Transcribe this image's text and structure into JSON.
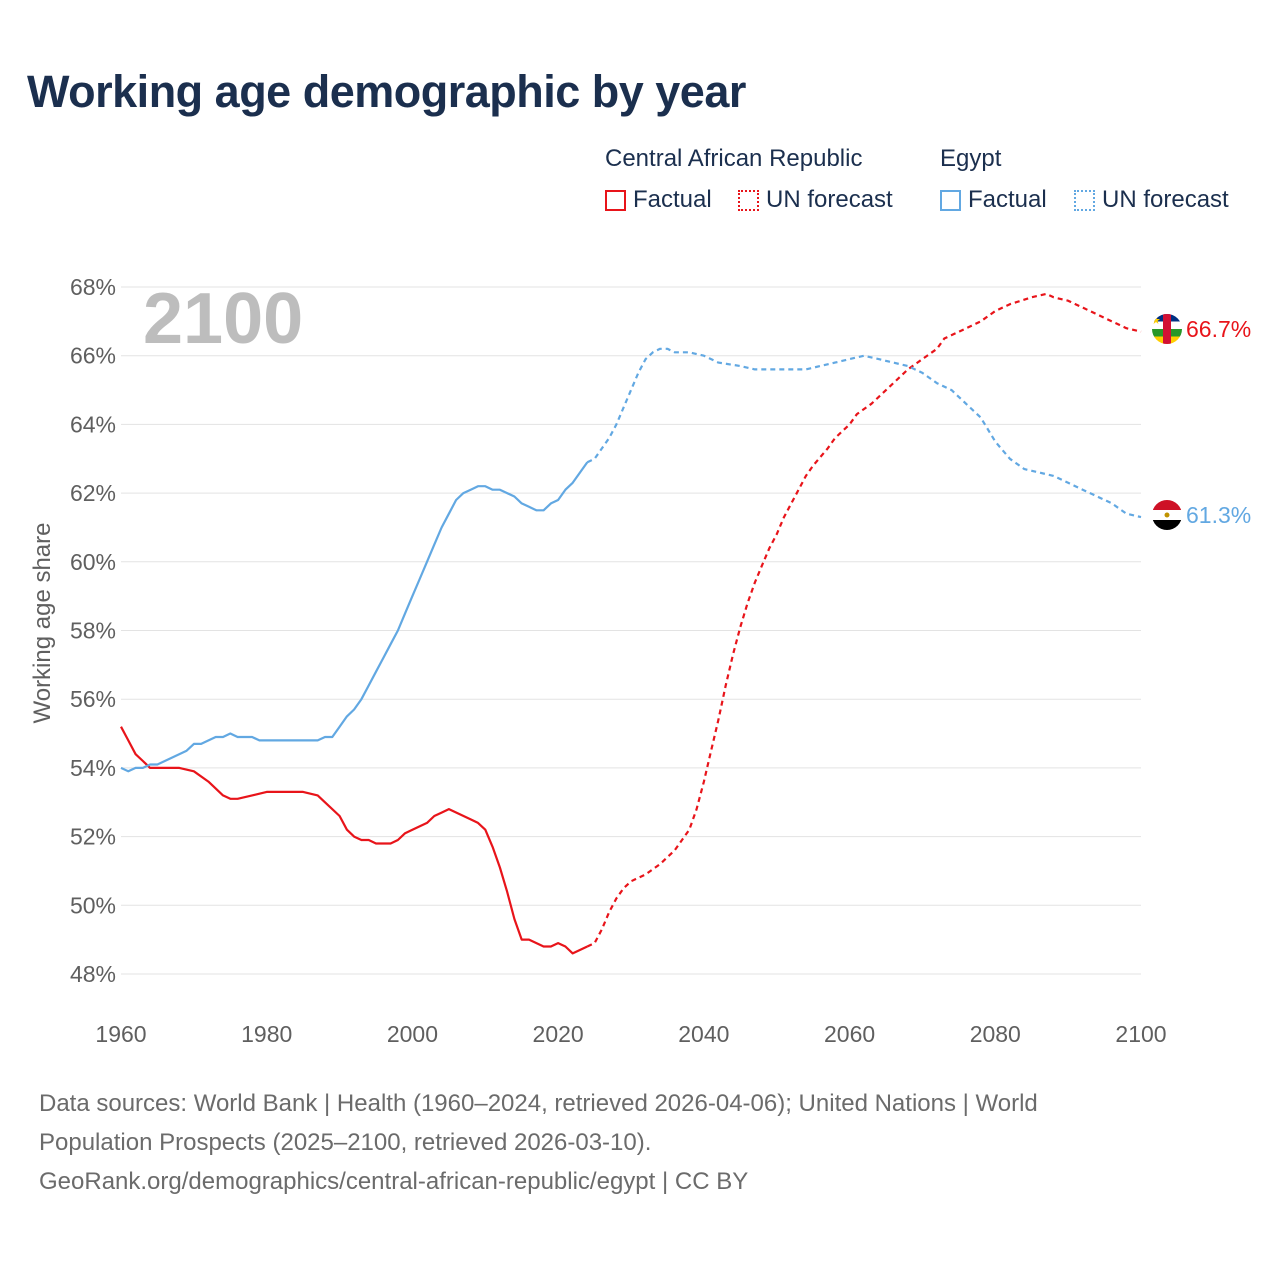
{
  "title": "Working age demographic by year",
  "legend": {
    "groups": [
      {
        "name": "Central African Republic",
        "factual": "Factual",
        "forecast": "UN forecast",
        "color": "#e8141a"
      },
      {
        "name": "Egypt",
        "factual": "Factual",
        "forecast": "UN forecast",
        "color": "#62a8e2"
      }
    ]
  },
  "year_watermark": "2100",
  "end_labels": {
    "caf": "66.7%",
    "egypt": "61.3%"
  },
  "footer": {
    "line1": "Data sources: World Bank | Health (1960–2024, retrieved 2026-04-06); United Nations | World",
    "line2": "Population Prospects (2025–2100, retrieved 2026-03-10).",
    "line3": "GeoRank.org/demographics/central-african-republic/egypt | CC BY"
  },
  "chart_data": {
    "type": "line",
    "title": "Working age demographic by year",
    "xlabel": "",
    "ylabel": "Working age share",
    "xlim": [
      1960,
      2100
    ],
    "ylim": [
      47.5,
      68
    ],
    "x_ticks": [
      1960,
      1980,
      2000,
      2020,
      2040,
      2060,
      2080,
      2100
    ],
    "x_tick_labels": [
      "1960",
      "1980",
      "2000",
      "2020",
      "2040",
      "2060",
      "2080",
      "2100"
    ],
    "y_ticks": [
      48,
      50,
      52,
      54,
      56,
      58,
      60,
      62,
      64,
      66,
      68
    ],
    "y_tick_labels": [
      "48%",
      "50%",
      "52%",
      "54%",
      "56%",
      "58%",
      "60%",
      "62%",
      "64%",
      "66%",
      "68%"
    ],
    "series": [
      {
        "name": "Central African Republic",
        "color": "#e8141a",
        "factual": [
          [
            1960,
            55.2
          ],
          [
            1961,
            54.8
          ],
          [
            1962,
            54.4
          ],
          [
            1963,
            54.2
          ],
          [
            1964,
            54.0
          ],
          [
            1965,
            54.0
          ],
          [
            1968,
            54.0
          ],
          [
            1970,
            53.9
          ],
          [
            1972,
            53.6
          ],
          [
            1974,
            53.2
          ],
          [
            1975,
            53.1
          ],
          [
            1976,
            53.1
          ],
          [
            1978,
            53.2
          ],
          [
            1980,
            53.3
          ],
          [
            1985,
            53.3
          ],
          [
            1987,
            53.2
          ],
          [
            1988,
            53.0
          ],
          [
            1990,
            52.6
          ],
          [
            1991,
            52.2
          ],
          [
            1992,
            52.0
          ],
          [
            1993,
            51.9
          ],
          [
            1994,
            51.9
          ],
          [
            1995,
            51.8
          ],
          [
            1997,
            51.8
          ],
          [
            1998,
            51.9
          ],
          [
            1999,
            52.1
          ],
          [
            2000,
            52.2
          ],
          [
            2002,
            52.4
          ],
          [
            2003,
            52.6
          ],
          [
            2004,
            52.7
          ],
          [
            2005,
            52.8
          ],
          [
            2008,
            52.5
          ],
          [
            2009,
            52.4
          ],
          [
            2010,
            52.2
          ],
          [
            2011,
            51.7
          ],
          [
            2012,
            51.1
          ],
          [
            2013,
            50.4
          ],
          [
            2014,
            49.6
          ],
          [
            2015,
            49.0
          ],
          [
            2016,
            49.0
          ],
          [
            2018,
            48.8
          ],
          [
            2019,
            48.8
          ],
          [
            2020,
            48.9
          ],
          [
            2021,
            48.8
          ],
          [
            2022,
            48.6
          ],
          [
            2024,
            48.8
          ]
        ],
        "forecast": [
          [
            2024,
            48.8
          ],
          [
            2025,
            48.9
          ],
          [
            2026,
            49.3
          ],
          [
            2027,
            49.8
          ],
          [
            2028,
            50.2
          ],
          [
            2029,
            50.5
          ],
          [
            2030,
            50.7
          ],
          [
            2032,
            50.9
          ],
          [
            2034,
            51.2
          ],
          [
            2035,
            51.4
          ],
          [
            2036,
            51.6
          ],
          [
            2037,
            51.9
          ],
          [
            2038,
            52.2
          ],
          [
            2039,
            52.8
          ],
          [
            2040,
            53.6
          ],
          [
            2041,
            54.5
          ],
          [
            2042,
            55.4
          ],
          [
            2043,
            56.4
          ],
          [
            2044,
            57.3
          ],
          [
            2045,
            58.1
          ],
          [
            2046,
            58.8
          ],
          [
            2047,
            59.4
          ],
          [
            2048,
            59.9
          ],
          [
            2049,
            60.4
          ],
          [
            2050,
            60.8
          ],
          [
            2051,
            61.3
          ],
          [
            2052,
            61.7
          ],
          [
            2053,
            62.1
          ],
          [
            2054,
            62.5
          ],
          [
            2055,
            62.8
          ],
          [
            2057,
            63.3
          ],
          [
            2058,
            63.6
          ],
          [
            2060,
            64.0
          ],
          [
            2061,
            64.3
          ],
          [
            2063,
            64.6
          ],
          [
            2065,
            65.0
          ],
          [
            2066,
            65.2
          ],
          [
            2068,
            65.6
          ],
          [
            2070,
            65.9
          ],
          [
            2072,
            66.2
          ],
          [
            2073,
            66.5
          ],
          [
            2075,
            66.7
          ],
          [
            2078,
            67.0
          ],
          [
            2080,
            67.3
          ],
          [
            2082,
            67.5
          ],
          [
            2085,
            67.7
          ],
          [
            2087,
            67.8
          ],
          [
            2088,
            67.7
          ],
          [
            2090,
            67.6
          ],
          [
            2092,
            67.4
          ],
          [
            2094,
            67.2
          ],
          [
            2096,
            67.0
          ],
          [
            2098,
            66.8
          ],
          [
            2100,
            66.7
          ]
        ]
      },
      {
        "name": "Egypt",
        "color": "#62a8e2",
        "factual": [
          [
            1960,
            54.0
          ],
          [
            1961,
            53.9
          ],
          [
            1962,
            54.0
          ],
          [
            1963,
            54.0
          ],
          [
            1964,
            54.1
          ],
          [
            1965,
            54.1
          ],
          [
            1967,
            54.3
          ],
          [
            1969,
            54.5
          ],
          [
            1970,
            54.7
          ],
          [
            1971,
            54.7
          ],
          [
            1973,
            54.9
          ],
          [
            1974,
            54.9
          ],
          [
            1975,
            55.0
          ],
          [
            1976,
            54.9
          ],
          [
            1978,
            54.9
          ],
          [
            1979,
            54.8
          ],
          [
            1987,
            54.8
          ],
          [
            1988,
            54.9
          ],
          [
            1989,
            54.9
          ],
          [
            1990,
            55.2
          ],
          [
            1991,
            55.5
          ],
          [
            1992,
            55.7
          ],
          [
            1993,
            56.0
          ],
          [
            1994,
            56.4
          ],
          [
            1995,
            56.8
          ],
          [
            1996,
            57.2
          ],
          [
            1997,
            57.6
          ],
          [
            1998,
            58.0
          ],
          [
            1999,
            58.5
          ],
          [
            2000,
            59.0
          ],
          [
            2001,
            59.5
          ],
          [
            2002,
            60.0
          ],
          [
            2003,
            60.5
          ],
          [
            2004,
            61.0
          ],
          [
            2005,
            61.4
          ],
          [
            2006,
            61.8
          ],
          [
            2007,
            62.0
          ],
          [
            2008,
            62.1
          ],
          [
            2009,
            62.2
          ],
          [
            2010,
            62.2
          ],
          [
            2011,
            62.1
          ],
          [
            2012,
            62.1
          ],
          [
            2013,
            62.0
          ],
          [
            2014,
            61.9
          ],
          [
            2015,
            61.7
          ],
          [
            2016,
            61.6
          ],
          [
            2017,
            61.5
          ],
          [
            2018,
            61.5
          ],
          [
            2019,
            61.7
          ],
          [
            2020,
            61.8
          ],
          [
            2021,
            62.1
          ],
          [
            2022,
            62.3
          ],
          [
            2023,
            62.6
          ],
          [
            2024,
            62.9
          ]
        ],
        "forecast": [
          [
            2024,
            62.9
          ],
          [
            2025,
            63.0
          ],
          [
            2026,
            63.3
          ],
          [
            2027,
            63.6
          ],
          [
            2028,
            64.0
          ],
          [
            2029,
            64.5
          ],
          [
            2030,
            65.0
          ],
          [
            2031,
            65.5
          ],
          [
            2032,
            65.9
          ],
          [
            2033,
            66.1
          ],
          [
            2034,
            66.2
          ],
          [
            2035,
            66.2
          ],
          [
            2036,
            66.1
          ],
          [
            2038,
            66.1
          ],
          [
            2040,
            66.0
          ],
          [
            2042,
            65.8
          ],
          [
            2045,
            65.7
          ],
          [
            2047,
            65.6
          ],
          [
            2054,
            65.6
          ],
          [
            2056,
            65.7
          ],
          [
            2058,
            65.8
          ],
          [
            2060,
            65.9
          ],
          [
            2062,
            66.0
          ],
          [
            2064,
            65.9
          ],
          [
            2066,
            65.8
          ],
          [
            2068,
            65.7
          ],
          [
            2070,
            65.5
          ],
          [
            2072,
            65.2
          ],
          [
            2074,
            65.0
          ],
          [
            2076,
            64.6
          ],
          [
            2078,
            64.2
          ],
          [
            2080,
            63.5
          ],
          [
            2082,
            63.0
          ],
          [
            2084,
            62.7
          ],
          [
            2086,
            62.6
          ],
          [
            2088,
            62.5
          ],
          [
            2090,
            62.3
          ],
          [
            2092,
            62.1
          ],
          [
            2094,
            61.9
          ],
          [
            2096,
            61.7
          ],
          [
            2098,
            61.4
          ],
          [
            2100,
            61.3
          ]
        ]
      }
    ]
  }
}
